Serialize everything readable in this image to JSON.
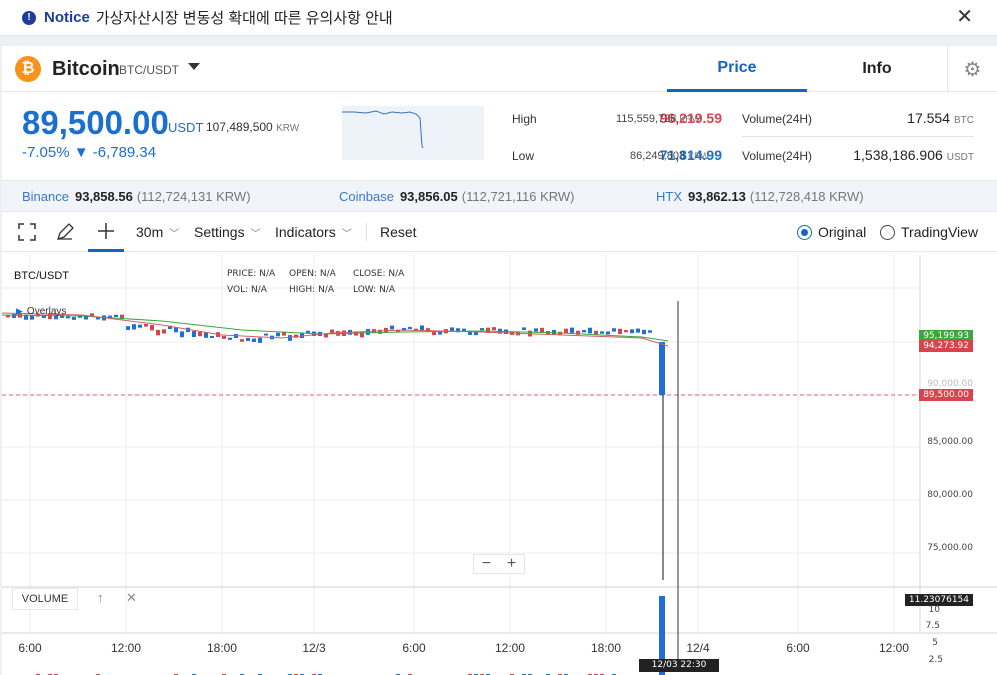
{
  "notice": {
    "title": "Notice",
    "message": "가상자산시장 변동성 확대에 따른 유의사항 안내"
  },
  "coin": {
    "name": "Bitcoin",
    "pair": "BTC/USDT",
    "icon": "bitcoin-icon",
    "icon_color": "#f7931a"
  },
  "tabs": [
    {
      "label": "Price"
    },
    {
      "label": "Info"
    }
  ],
  "price": {
    "last": "89,500.00",
    "unit": "USDT",
    "krw": "107,489,500",
    "krw_unit": "KRW",
    "change_pct": "-7.05%",
    "change_abs": "▼ -6,789.34"
  },
  "stats": {
    "high_label": "High",
    "high_value": "96,219.59",
    "high_krw": "115,559,728",
    "high_krw_unit": "KRW",
    "low_label": "Low",
    "low_value": "71,814.99",
    "low_krw": "86,249,803",
    "low_krw_unit": "KRW",
    "vol1_label": "Volume(24H)",
    "vol1_value": "17.554",
    "vol1_unit": "BTC",
    "vol2_label": "Volume(24H)",
    "vol2_value": "1,538,186.906",
    "vol2_unit": "USDT"
  },
  "exchanges": [
    {
      "name": "Binance",
      "price": "93,858.56",
      "krw": "(112,724,131 KRW)"
    },
    {
      "name": "Coinbase",
      "price": "93,856.05",
      "krw": "(112,721,116 KRW)"
    },
    {
      "name": "HTX",
      "price": "93,862.13",
      "krw": "(112,728,418 KRW)"
    }
  ],
  "toolbar": {
    "interval": "30m",
    "settings": "Settings",
    "indicators": "Indicators",
    "reset": "Reset",
    "view_original": "Original",
    "view_tradingview": "TradingView",
    "selected_view": "Original"
  },
  "chart": {
    "symbol": "BTC/USDT",
    "overlays": "Overlays",
    "legend": {
      "price_label": "PRICE:",
      "price": "N/A",
      "open_label": "OPEN:",
      "open": "N/A",
      "close_label": "CLOSE:",
      "close": "N/A",
      "vol_label": "VOL:",
      "vol": "N/A",
      "high_label": "HIGH:",
      "high": "N/A",
      "low_label": "LOW:",
      "low": "N/A"
    },
    "volume_label": "VOLUME",
    "y_labels": [
      "85,000.00",
      "80,000.00",
      "75,000.00"
    ],
    "price_tags": {
      "ma": "95,199.93",
      "prev": "94,273.92",
      "last": "89,500.00",
      "hidden": "90,000.00",
      "volume": "11.23076154"
    },
    "volume_scale": [
      "10",
      "7.5",
      "5",
      "2.5"
    ],
    "x_labels": [
      "6:00",
      "12:00",
      "18:00",
      "12/3",
      "6:00",
      "12:00",
      "18:00",
      "12/4",
      "6:00",
      "12:00"
    ],
    "crosshair_time": "12/03 22:30",
    "colors": {
      "up": "#d9434e",
      "down": "#1f6fd6",
      "ma_fast": "#d06060",
      "ma_slow": "#3aa83a"
    }
  }
}
